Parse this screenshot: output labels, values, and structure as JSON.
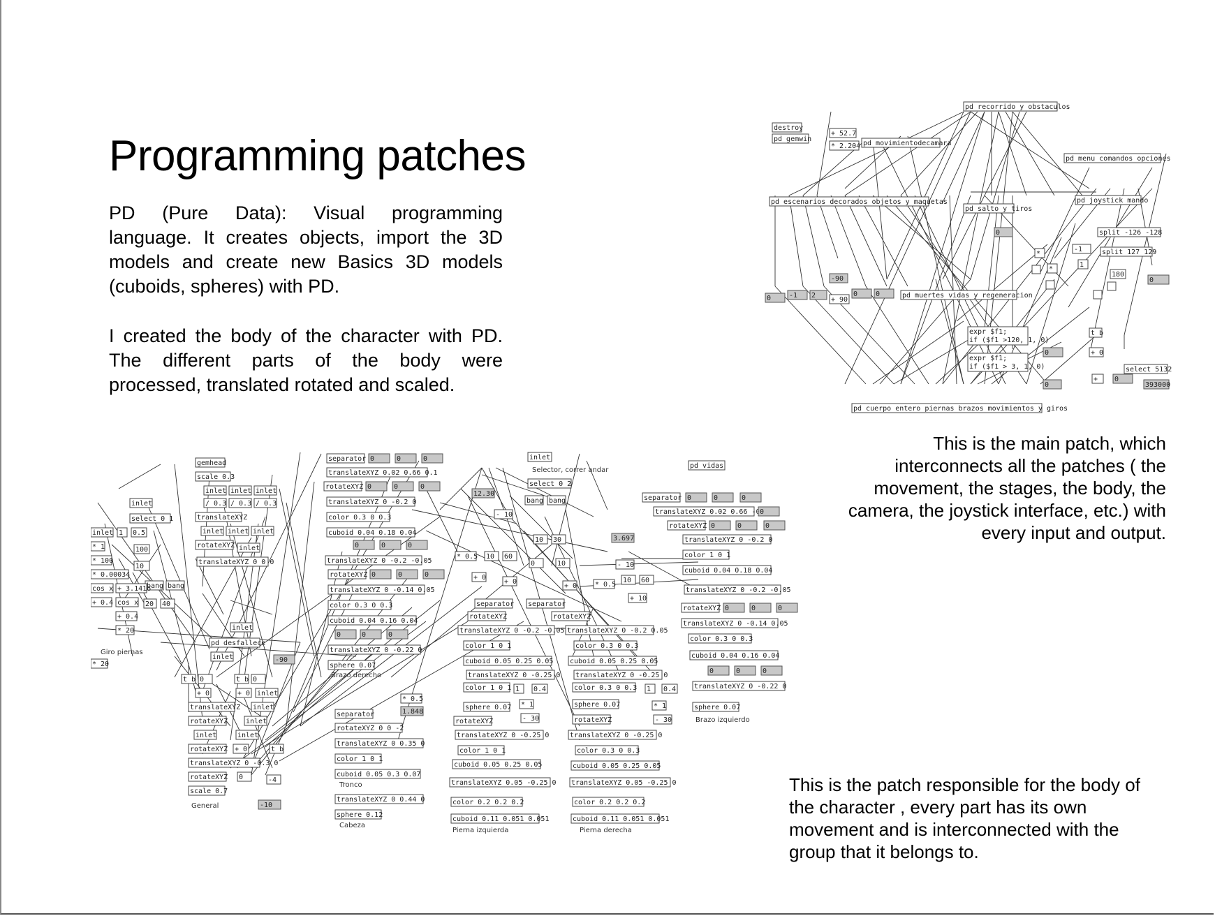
{
  "slide": {
    "title": "Programming patches",
    "paragraph_1": "PD (Pure Data): Visual programming language. It creates objects, import the 3D models and create new Basics 3D models (cuboids, spheres) with PD.",
    "paragraph_2": "I created the body of the character with PD. The different parts of the body were processed, translated rotated and scaled.",
    "caption_main_patch": "This is the main patch, which interconnects all the patches ( the movement, the stages, the body, the camera, the joystick interface, etc.) with every input and output.",
    "caption_body_patch": "This is the patch responsible for the body of the character , every part has its own movement and is interconnected with the group that it belongs to."
  },
  "main_patch": {
    "objects": [
      "pd recorrido y obstaculos",
      "destroy",
      "pd gemwin",
      "+ 52.7",
      "* 2.204",
      "pd movimientodecamara",
      "pd menu comandos opciones",
      "pd escenarios decorados objetos y maquetas",
      "pd salto y tiros",
      "pd joystick mando",
      "split -126 -128",
      "split 127 129",
      "-1",
      "1",
      "180",
      "-90",
      "+ 90",
      "pd muertes vidas y regeneracion",
      "expr $f1;",
      "t b",
      "+ 0",
      "select 5132",
      "393000",
      "pd cuerpo entero piernas brazos movimientos y giros"
    ]
  },
  "body_patch": {
    "groups": {
      "general": "General",
      "giro_piernas": "Giro piernas",
      "brazo_derecho": "Brazo derecho",
      "brazo_izquierdo": "Brazo izquierdo",
      "tronco": "Tronco",
      "cabeza": "Cabeza",
      "pierna_izquierda": "Pierna izquierda",
      "pierna_derecha": "Pierna derecha",
      "selector": "Selector, correr andar"
    },
    "objects": [
      "gemhead",
      "scale 0.3",
      "inlet",
      "/ 0.3",
      "translateXYZ",
      "rotateXYZ",
      "translateXYZ 0 0 0",
      "select 0 1",
      "* 1",
      "* 100",
      "* 0.00034",
      "cos x",
      "+ 3.1416",
      "+ 0.4",
      "bang",
      "20",
      "40",
      "* 20",
      "pd desfallece",
      "-90",
      "t b",
      "+ 0",
      "scale 0.7",
      "-10",
      "-4",
      "separator",
      "translateXYZ 0.02 0.66 0.1",
      "translateXYZ 0 -0.2 0",
      "color 0.3 0 0.3",
      "cuboid 0.04 0.18 0.04",
      "translateXYZ 0 -0.2 -0.05",
      "translateXYZ 0 -0.14 0.05",
      "cuboid 0.04 0.16 0.04",
      "translateXYZ 0 -0.22 0",
      "sphere 0.07",
      "rotateXYZ 0 0 -2",
      "translateXYZ 0 0.35 0",
      "color 1 0 1",
      "cuboid 0.05 0.3 0.07",
      "translateXYZ 0 0.44 0",
      "sphere 0.12",
      "* 0.5",
      "1.848",
      "select 0 2",
      "pd vidas",
      "12.30",
      "- 10",
      "10",
      "30",
      "60",
      "3.697",
      "- 10",
      "translateXYZ 0.02 0.66 -0.1",
      "color 1 0 1",
      "cuboid 0.04 0.18 0.04",
      "translateXYZ 0 -0.2 0.05",
      "cuboid 0.05 0.25 0.05",
      "translateXYZ 0 -0.25 0",
      "color 1 0 1",
      "- 30",
      "translateXYZ 0.05 -0.25 0",
      "color 0.2 0.2 0.2",
      "cuboid 0.11 0.051 0.051",
      "0.4"
    ]
  }
}
